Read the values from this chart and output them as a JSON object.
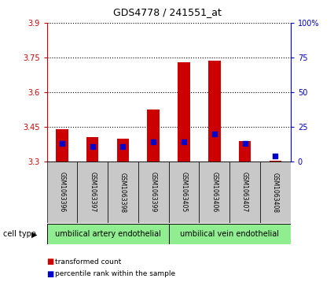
{
  "title": "GDS4778 / 241551_at",
  "samples": [
    "GSM1063396",
    "GSM1063397",
    "GSM1063398",
    "GSM1063399",
    "GSM1063405",
    "GSM1063406",
    "GSM1063407",
    "GSM1063408"
  ],
  "transformed_count": [
    3.44,
    3.405,
    3.4,
    3.525,
    3.73,
    3.735,
    3.39,
    3.305
  ],
  "percentile_rank": [
    13,
    11,
    11,
    14,
    14,
    20,
    13,
    4
  ],
  "baseline": 3.3,
  "ylim_left": [
    3.3,
    3.9
  ],
  "ylim_right": [
    0,
    100
  ],
  "yticks_left": [
    3.3,
    3.45,
    3.6,
    3.75,
    3.9
  ],
  "yticks_right": [
    0,
    25,
    50,
    75,
    100
  ],
  "ytick_labels_left": [
    "3.3",
    "3.45",
    "3.6",
    "3.75",
    "3.9"
  ],
  "ytick_labels_right": [
    "0",
    "25",
    "50",
    "75",
    "100%"
  ],
  "cell_type_groups": [
    {
      "label": "umbilical artery endothelial",
      "start": 0,
      "end": 4,
      "color": "#90EE90"
    },
    {
      "label": "umbilical vein endothelial",
      "start": 4,
      "end": 8,
      "color": "#90EE90"
    }
  ],
  "cell_type_label": "cell type",
  "legend_items": [
    {
      "color": "#CC0000",
      "label": "transformed count"
    },
    {
      "color": "#0000CC",
      "label": "percentile rank within the sample"
    }
  ],
  "bar_color": "#CC0000",
  "percentile_color": "#0000CC",
  "left_axis_color": "#CC0000",
  "right_axis_color": "#0000CC",
  "bg_color": "#FFFFFF",
  "plot_area_bg": "#FFFFFF",
  "sample_bg_color": "#C8C8C8",
  "bar_width": 0.4
}
